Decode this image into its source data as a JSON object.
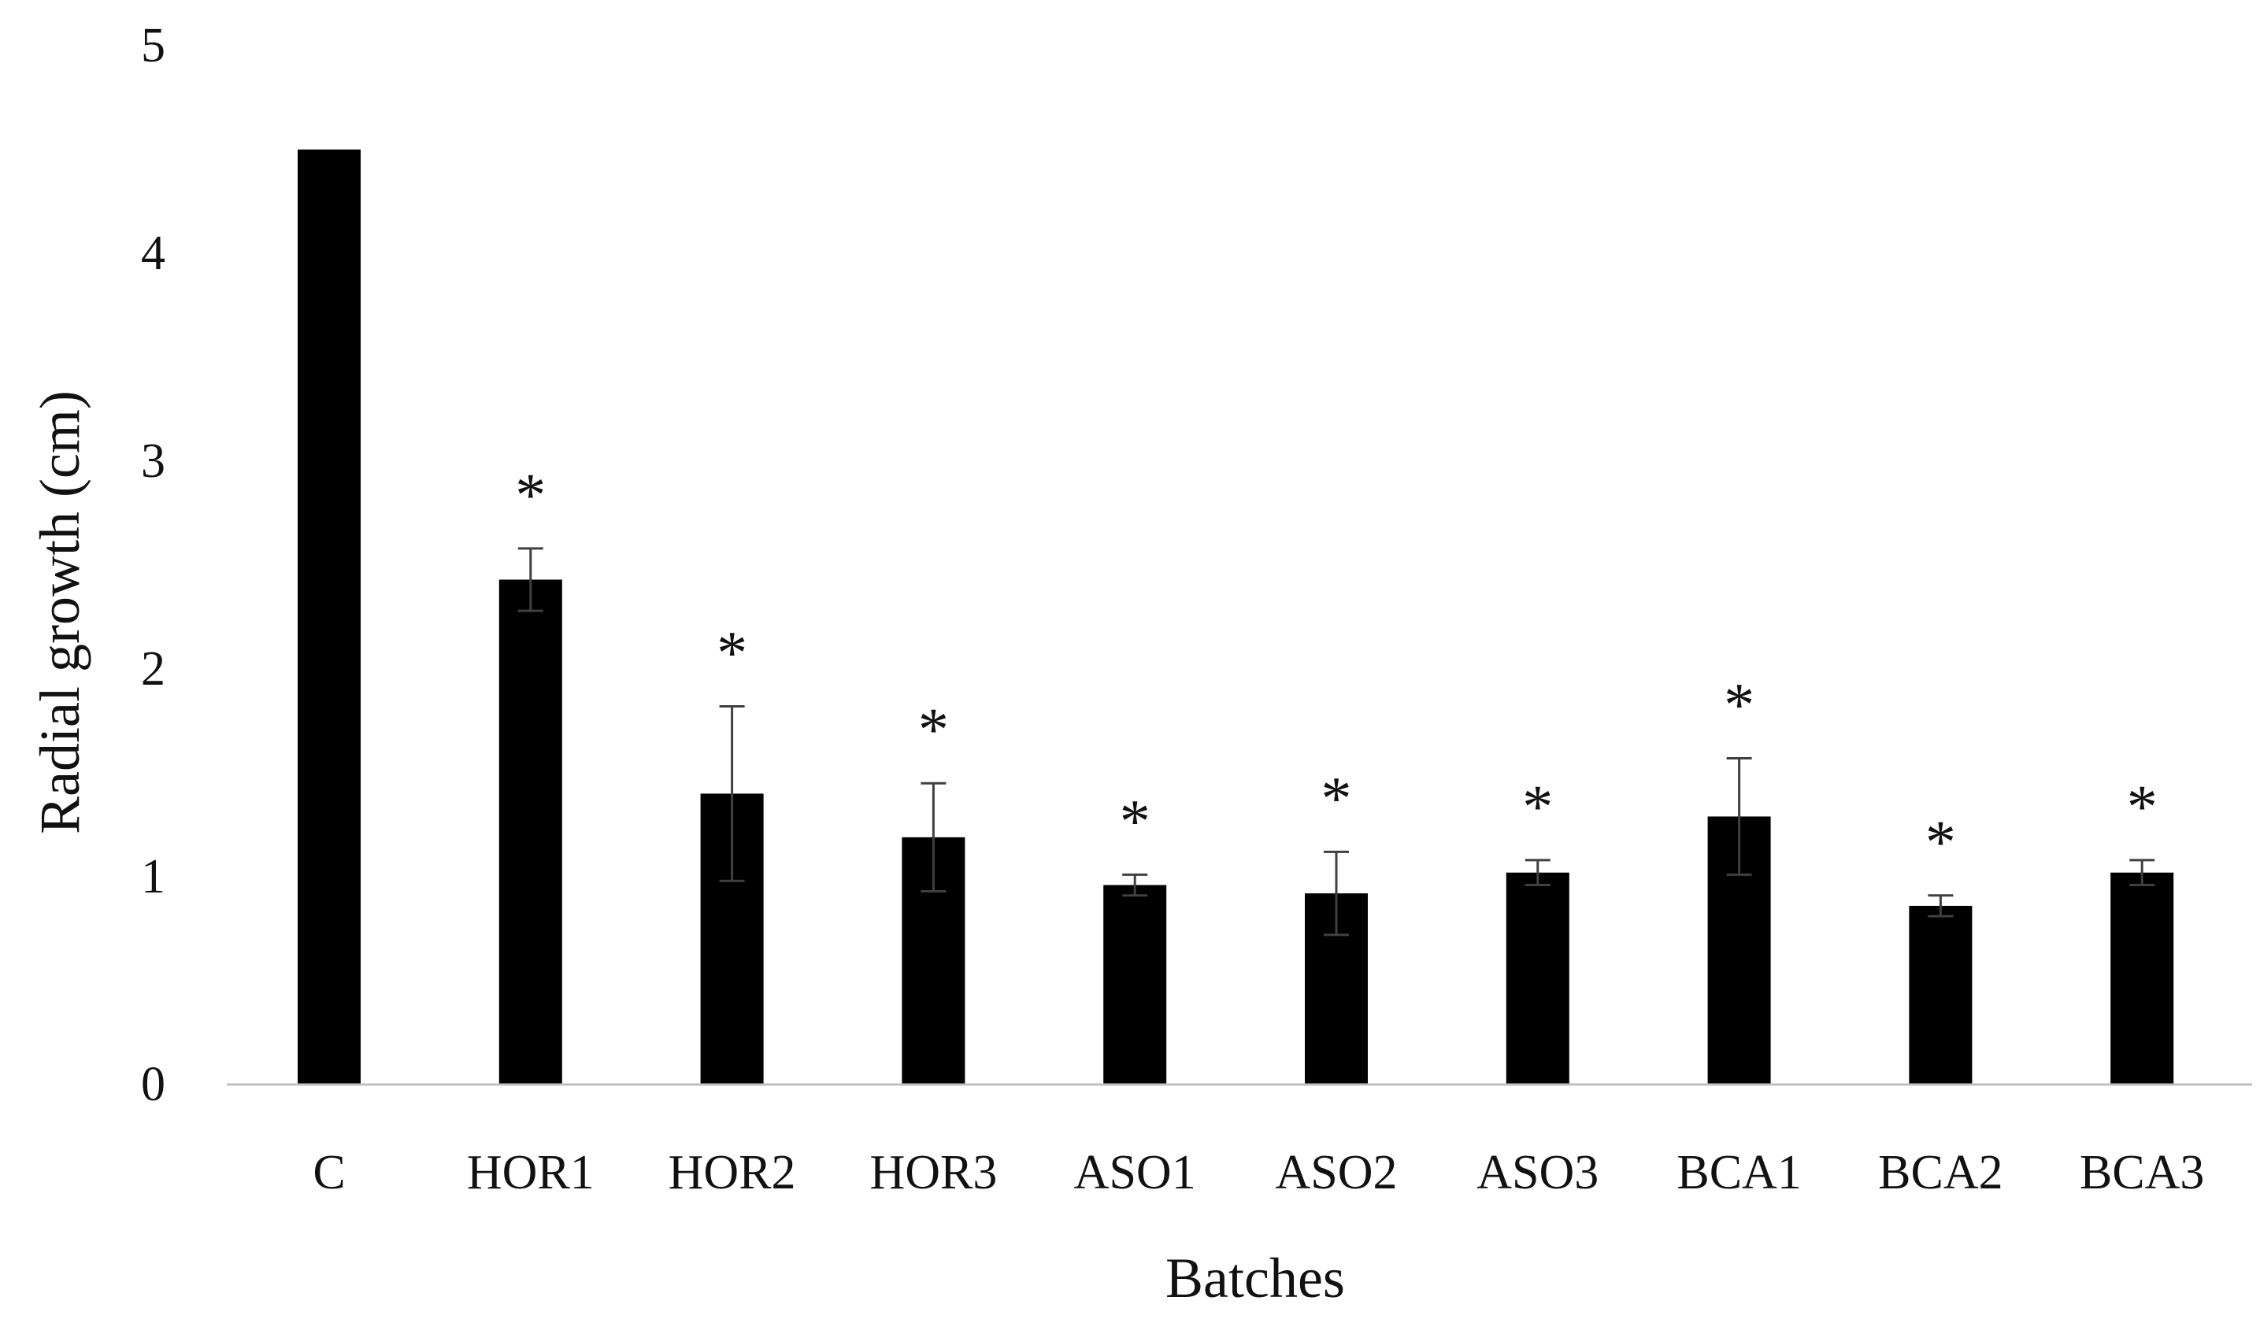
{
  "chart_data": {
    "type": "bar",
    "title": "",
    "xlabel": "Batches",
    "ylabel": "Radial growth (cm)",
    "ylim": [
      0,
      5
    ],
    "yticks": [
      "0",
      "1",
      "2",
      "3",
      "4",
      "5"
    ],
    "categories": [
      "C",
      "HOR1",
      "HOR2",
      "HOR3",
      "ASO1",
      "ASO2",
      "ASO3",
      "BCA1",
      "BCA2",
      "BCA3"
    ],
    "values": [
      4.5,
      2.43,
      1.4,
      1.19,
      0.96,
      0.92,
      1.02,
      1.29,
      0.86,
      1.02
    ],
    "errors": [
      0.0,
      0.15,
      0.42,
      0.26,
      0.05,
      0.2,
      0.06,
      0.28,
      0.05,
      0.06
    ],
    "significance": [
      "",
      "*",
      "*",
      "*",
      "*",
      "*",
      "*",
      "*",
      "*",
      "*"
    ],
    "grid": false,
    "legend": "none",
    "colors": {
      "bar": "#000000",
      "axis": "#bfbfbf",
      "error": "#404040"
    }
  }
}
